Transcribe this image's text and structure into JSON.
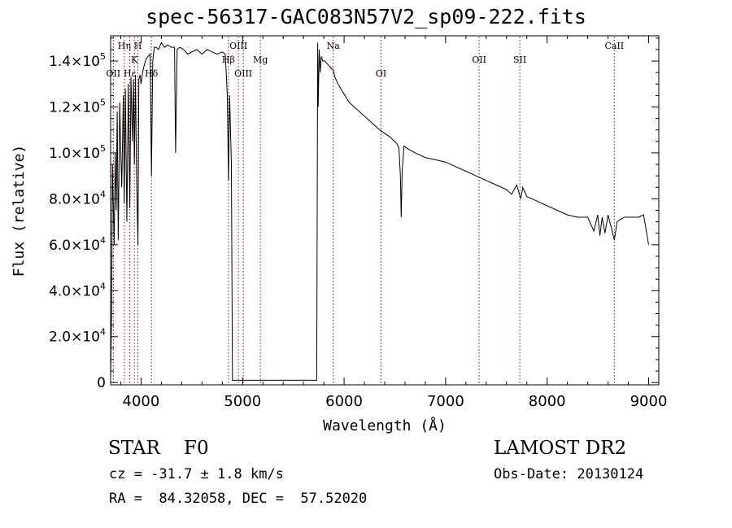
{
  "chart_data": {
    "type": "line",
    "title": "spec-56317-GAC083N57V2_sp09-222.fits",
    "xlabel": "Wavelength (Å)",
    "ylabel": "Flux (relative)",
    "xlim": [
      3700,
      9100
    ],
    "ylim": [
      -1000,
      151000
    ],
    "x_ticks": [
      4000,
      5000,
      6000,
      7000,
      8000,
      9000
    ],
    "y_ticks": [
      {
        "value": 0,
        "mantissa": "0",
        "exp": ""
      },
      {
        "value": 20000,
        "mantissa": "2.0×10",
        "exp": "4"
      },
      {
        "value": 40000,
        "mantissa": "4.0×10",
        "exp": "4"
      },
      {
        "value": 60000,
        "mantissa": "6.0×10",
        "exp": "4"
      },
      {
        "value": 80000,
        "mantissa": "8.0×10",
        "exp": "4"
      },
      {
        "value": 100000,
        "mantissa": "1.0×10",
        "exp": "5"
      },
      {
        "value": 120000,
        "mantissa": "1.2×10",
        "exp": "5"
      },
      {
        "value": 140000,
        "mantissa": "1.4×10",
        "exp": "5"
      }
    ],
    "line_color": "#000000",
    "marker_color": "#a00000",
    "grid": false,
    "lines": [
      {
        "label": "OII",
        "wave": 3727,
        "row": 2
      },
      {
        "label": "Hη",
        "wave": 3835,
        "row": 0
      },
      {
        "label": "Hε",
        "wave": 3889,
        "row": 2
      },
      {
        "label": "K",
        "wave": 3934,
        "row": 1
      },
      {
        "label": "H",
        "wave": 3969,
        "row": 0
      },
      {
        "label": "Hδ",
        "wave": 4102,
        "row": 2
      },
      {
        "label": "Hβ",
        "wave": 4861,
        "row": 1
      },
      {
        "label": "OIII",
        "wave": 4959,
        "row": 0
      },
      {
        "label": "OIII",
        "wave": 5007,
        "row": 2
      },
      {
        "label": "Mg",
        "wave": 5175,
        "row": 1
      },
      {
        "label": "Na",
        "wave": 5893,
        "row": 0
      },
      {
        "label": "OI",
        "wave": 6364,
        "row": 2
      },
      {
        "label": "OII",
        "wave": 7330,
        "row": 1
      },
      {
        "label": "SII",
        "wave": 7731,
        "row": 1
      },
      {
        "label": "CaII",
        "wave": 8662,
        "row": 0
      }
    ],
    "spectrum": {
      "x": [
        3700,
        3710,
        3718,
        3725,
        3735,
        3745,
        3755,
        3765,
        3775,
        3790,
        3800,
        3810,
        3825,
        3835,
        3845,
        3860,
        3875,
        3889,
        3900,
        3915,
        3925,
        3934,
        3945,
        3955,
        3969,
        3978,
        3990,
        4000,
        4015,
        4030,
        4050,
        4070,
        4090,
        4102,
        4115,
        4130,
        4150,
        4170,
        4200,
        4230,
        4260,
        4300,
        4330,
        4340,
        4355,
        4380,
        4420,
        4460,
        4500,
        4550,
        4600,
        4650,
        4700,
        4750,
        4800,
        4830,
        4850,
        4861,
        4872,
        4890,
        4900,
        5730,
        5740,
        5745,
        5755,
        5765,
        5775,
        5790,
        5810,
        5830,
        5850,
        5870,
        5893,
        5910,
        5940,
        5980,
        6050,
        6150,
        6250,
        6350,
        6450,
        6520,
        6540,
        6555,
        6563,
        6572,
        6590,
        6620,
        6700,
        6800,
        6900,
        7000,
        7100,
        7200,
        7300,
        7400,
        7500,
        7600,
        7650,
        7700,
        7740,
        7760,
        7800,
        7900,
        8000,
        8100,
        8200,
        8300,
        8400,
        8460,
        8498,
        8520,
        8542,
        8570,
        8600,
        8640,
        8662,
        8690,
        8720,
        8760,
        8800,
        8860,
        8900,
        8950,
        9000
      ],
      "y": [
        2000,
        30000,
        95000,
        80000,
        60000,
        100000,
        75000,
        118000,
        62000,
        122000,
        100000,
        85000,
        125000,
        78000,
        128000,
        70000,
        130000,
        76000,
        133000,
        105000,
        132000,
        95000,
        134000,
        92000,
        60000,
        132000,
        134000,
        130000,
        135000,
        138000,
        141000,
        142000,
        143000,
        90000,
        140000,
        146000,
        146000,
        145000,
        148000,
        146000,
        147000,
        146000,
        146000,
        100000,
        145000,
        146000,
        145000,
        143000,
        144000,
        145000,
        143000,
        145000,
        144000,
        143000,
        144000,
        143000,
        125000,
        88000,
        125000,
        95000,
        1000,
        1000,
        148000,
        120000,
        145000,
        135000,
        142000,
        140000,
        140000,
        139000,
        138000,
        137000,
        136000,
        133000,
        130000,
        127000,
        122000,
        118000,
        114000,
        110000,
        107000,
        104000,
        102000,
        90000,
        72000,
        92000,
        103000,
        102000,
        100000,
        98000,
        97000,
        96000,
        94000,
        92000,
        90000,
        88000,
        86000,
        84000,
        82000,
        86000,
        80000,
        85000,
        81000,
        79000,
        77000,
        75000,
        73000,
        72000,
        72000,
        66000,
        73000,
        64000,
        72000,
        65000,
        73000,
        66000,
        62000,
        70000,
        71000,
        72000,
        72000,
        72000,
        72000,
        73000,
        60000
      ]
    }
  },
  "info": {
    "object_class": "STAR    F0",
    "survey": "LAMOST DR2",
    "cz": "cz = -31.7 ± 1.8 km/s",
    "obs_date": "Obs-Date: 20130124",
    "radec": "RA =  84.32058, DEC =  57.52020"
  }
}
